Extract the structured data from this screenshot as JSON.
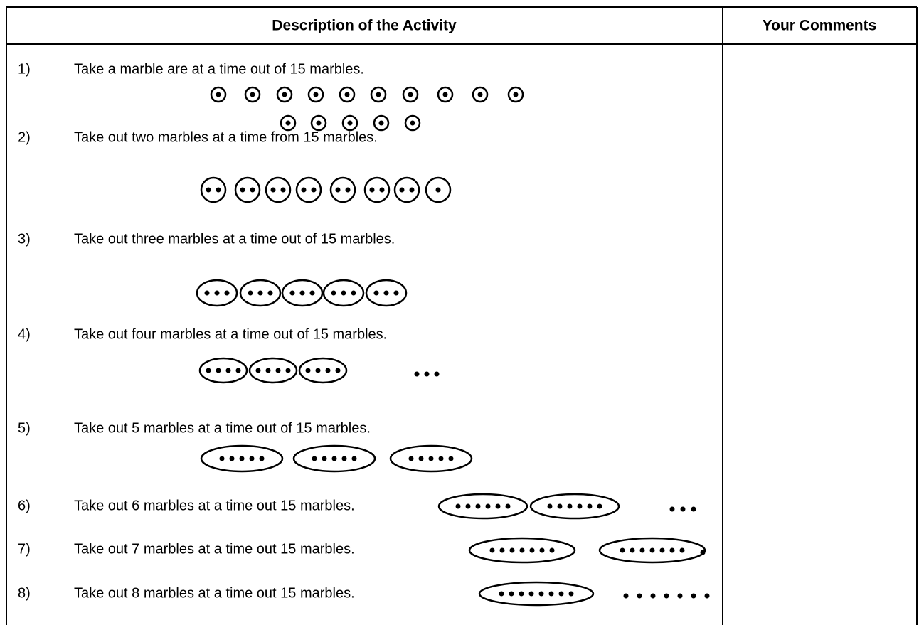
{
  "table": {
    "header": [
      "Description of the Activity",
      "Your Comments"
    ],
    "rows": [
      {
        "number": "1)",
        "description": "Take a marble are at a time out of 15 marbles."
      },
      {
        "number": "2)",
        "description": "Take out two marbles at a time from 15 marbles."
      },
      {
        "number": "3)",
        "description": "Take out three marbles at a time out of 15 marbles."
      },
      {
        "number": "4)",
        "description": "Take out four marbles at a time out of 15 marbles."
      },
      {
        "number": "5)",
        "description": "Take out 5 marbles at a time out of 15 marbles."
      },
      {
        "number": "6)",
        "description": "Take out 6 marbles at a time out 15 marbles."
      },
      {
        "number": "7)",
        "description": "Take out 7 marbles at a time out 15 marbles."
      },
      {
        "number": "8)",
        "description": "Take out 8 marbles at a time out 15 marbles."
      }
    ]
  }
}
